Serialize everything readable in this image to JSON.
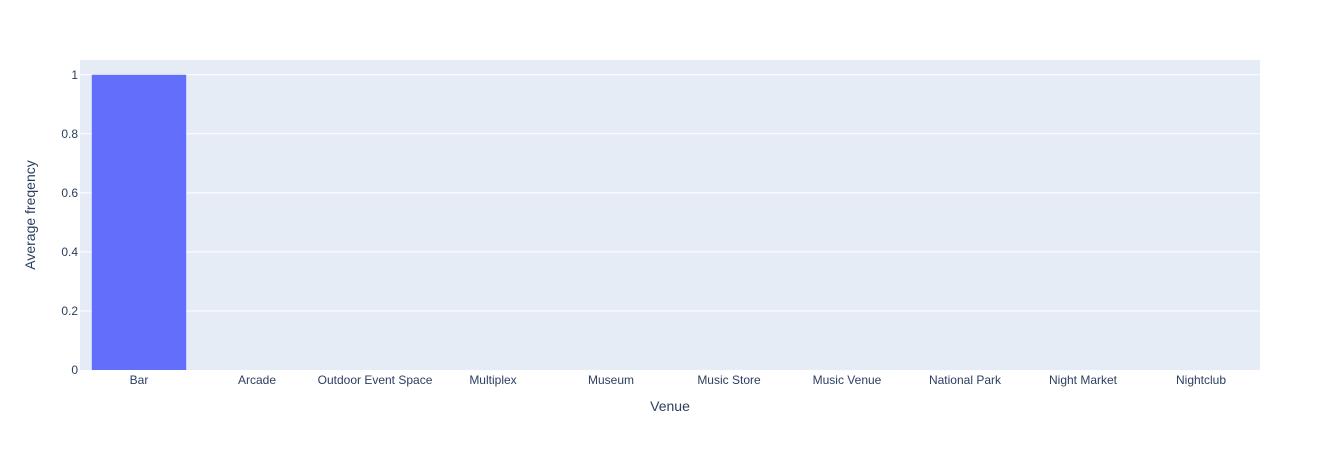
{
  "chart_data": {
    "type": "bar",
    "categories": [
      "Bar",
      "Arcade",
      "Outdoor Event Space",
      "Multiplex",
      "Museum",
      "Music Store",
      "Music Venue",
      "National Park",
      "Night Market",
      "Nightclub"
    ],
    "values": [
      1,
      0,
      0,
      0,
      0,
      0,
      0,
      0,
      0,
      0
    ],
    "title": "",
    "xlabel": "Venue",
    "ylabel": "Average freqency",
    "ylim": [
      0,
      1.05
    ],
    "yticks": [
      0,
      0.2,
      0.4,
      0.6,
      0.8,
      1
    ],
    "ytick_labels": [
      "0",
      "0.2",
      "0.4",
      "0.6",
      "0.8",
      "1"
    ],
    "grid": true,
    "legend": "none",
    "colors": {
      "bar": "#636efa",
      "plot_bg": "#e5ecf6",
      "grid": "#ffffff",
      "text": "#2a3f5f"
    }
  }
}
